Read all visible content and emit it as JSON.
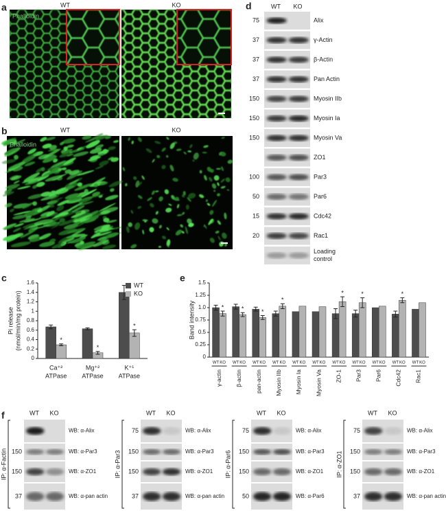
{
  "panel_a": {
    "label": "a",
    "columns": [
      "WT",
      "KO"
    ],
    "stain": "Phalloidin"
  },
  "panel_b": {
    "label": "b",
    "columns": [
      "WT",
      "KO"
    ],
    "stain": "Phalloidin"
  },
  "panel_d": {
    "label": "d",
    "columns": [
      "WT",
      "KO"
    ],
    "rows": [
      {
        "marker": 75,
        "label": "Alix"
      },
      {
        "marker": 37,
        "label": "γ-Actin"
      },
      {
        "marker": 37,
        "label": "β-Actin"
      },
      {
        "marker": 37,
        "label": "Pan Actin"
      },
      {
        "marker": 150,
        "label": "Myosin IIb"
      },
      {
        "marker": 150,
        "label": "Myosin Ia"
      },
      {
        "marker": 150,
        "label": "Myosin Va"
      },
      {
        "marker": null,
        "label": "ZO1"
      },
      {
        "marker": 100,
        "label": "Par3"
      },
      {
        "marker": 50,
        "label": "Par6"
      },
      {
        "marker": 15,
        "label": "Cdc42"
      },
      {
        "marker": 20,
        "label": "Rac1"
      },
      {
        "marker": null,
        "label": "Loading control"
      }
    ]
  },
  "panel_f": {
    "label": "f",
    "blots": [
      {
        "ip": "IP: α-Factin",
        "columns": [
          "WT",
          "KO"
        ],
        "rows": [
          {
            "marker": null,
            "label": "WB: α-Alix"
          },
          {
            "marker": 150,
            "label": "WB: α-Par3"
          },
          {
            "marker": 150,
            "label": "WB: α-ZO1"
          },
          {
            "marker": 37,
            "label": "WB: α-pan actin"
          }
        ]
      },
      {
        "ip": "IP: α-Par3",
        "columns": [
          "WT",
          "KO"
        ],
        "rows": [
          {
            "marker": 75,
            "label": "WB: α-Alix"
          },
          {
            "marker": 150,
            "label": "WB: α-Par3"
          },
          {
            "marker": 150,
            "label": "WB: α-ZO1"
          },
          {
            "marker": 37,
            "label": "WB: α-pan actin"
          }
        ]
      },
      {
        "ip": "IP: α-Par6",
        "columns": [
          "WT",
          "KO"
        ],
        "rows": [
          {
            "marker": 75,
            "label": "WB: α-Alix"
          },
          {
            "marker": 150,
            "label": "WB: α-Par3"
          },
          {
            "marker": 150,
            "label": "WB: α-ZO1"
          },
          {
            "marker": 50,
            "label": "WB: α-Par6"
          }
        ]
      },
      {
        "ip": "IP: α-ZO1",
        "columns": [
          "WT",
          "KO"
        ],
        "rows": [
          {
            "marker": 75,
            "label": "WB: α-Alix"
          },
          {
            "marker": 150,
            "label": "WB: α-Par3"
          },
          {
            "marker": 150,
            "label": "WB: α-ZO1"
          },
          {
            "marker": 37,
            "label": "WB: α-pan actin"
          }
        ]
      }
    ]
  },
  "chart_data": [
    {
      "type": "bar",
      "label": "c",
      "y_label": [
        "Pi release",
        "(nmol/min/mg protein)"
      ],
      "categories": [
        [
          "Ca⁺²",
          "ATPase"
        ],
        [
          "Mg⁺²",
          "ATPase"
        ],
        [
          "K⁺¹",
          "ATPase"
        ]
      ],
      "series": [
        {
          "name": "WT",
          "color": "#4d4d4d",
          "values": [
            0.67,
            0.63,
            1.4
          ],
          "errors": [
            0.04,
            0.02,
            0.15
          ]
        },
        {
          "name": "KO",
          "color": "#b3b3b3",
          "values": [
            0.29,
            0.12,
            0.54
          ],
          "errors": [
            0.02,
            0.03,
            0.07
          ],
          "significance": [
            "*",
            "*",
            "*"
          ]
        }
      ],
      "ylim": [
        0,
        1.6
      ],
      "yticks": [
        0,
        0.2,
        0.4,
        0.6,
        0.8,
        1,
        1.2,
        1.4,
        1.6
      ],
      "legend": "upper right"
    },
    {
      "type": "bar",
      "label": "e",
      "y_label": [
        "Band intensity"
      ],
      "categories": [
        "γ-actin",
        "β-actin",
        "pan-actin",
        "Myosin IIb",
        "Myosin Ia",
        "Myosin Va",
        "ZO-1",
        "Par3",
        "Par6",
        "Cdc42",
        "Rac1"
      ],
      "series": [
        {
          "name": "WT",
          "color": "#4d4d4d",
          "values": [
            1.0,
            1.02,
            0.97,
            0.88,
            0.92,
            0.92,
            0.88,
            0.88,
            1.0,
            0.87,
            0.97
          ],
          "errors": [
            0.05,
            0.05,
            0.04,
            0.05,
            null,
            null,
            0.1,
            0.07,
            null,
            0.06,
            null
          ]
        },
        {
          "name": "KO",
          "color": "#b3b3b3",
          "values": [
            0.88,
            0.86,
            0.8,
            1.03,
            1.03,
            1.02,
            1.12,
            1.1,
            1.03,
            1.15,
            1.1
          ],
          "errors": [
            0.05,
            0.04,
            0.04,
            0.05,
            null,
            null,
            0.1,
            0.1,
            null,
            0.05,
            null
          ],
          "significance": [
            "*",
            "*",
            "*",
            "*",
            null,
            null,
            "*",
            "*",
            null,
            "*",
            null
          ]
        }
      ],
      "ylim": [
        0,
        1.5
      ],
      "yticks": [
        0,
        0.25,
        0.5,
        0.75,
        {
          "value": 1,
          "label": "1.0"
        },
        1.25,
        1.5
      ],
      "legend": null
    }
  ]
}
